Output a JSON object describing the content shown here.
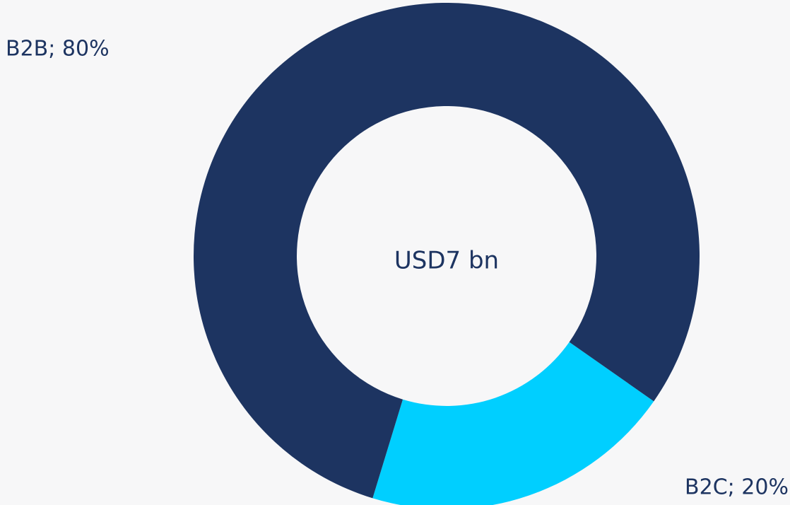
{
  "chart_data": {
    "type": "donut",
    "values": [
      80,
      20
    ],
    "value_labels": [
      "B2B; 80%",
      "B2C; 20%"
    ],
    "colors": [
      "#1d3461",
      "#00cfff"
    ],
    "center_label": "USD7 bn"
  }
}
